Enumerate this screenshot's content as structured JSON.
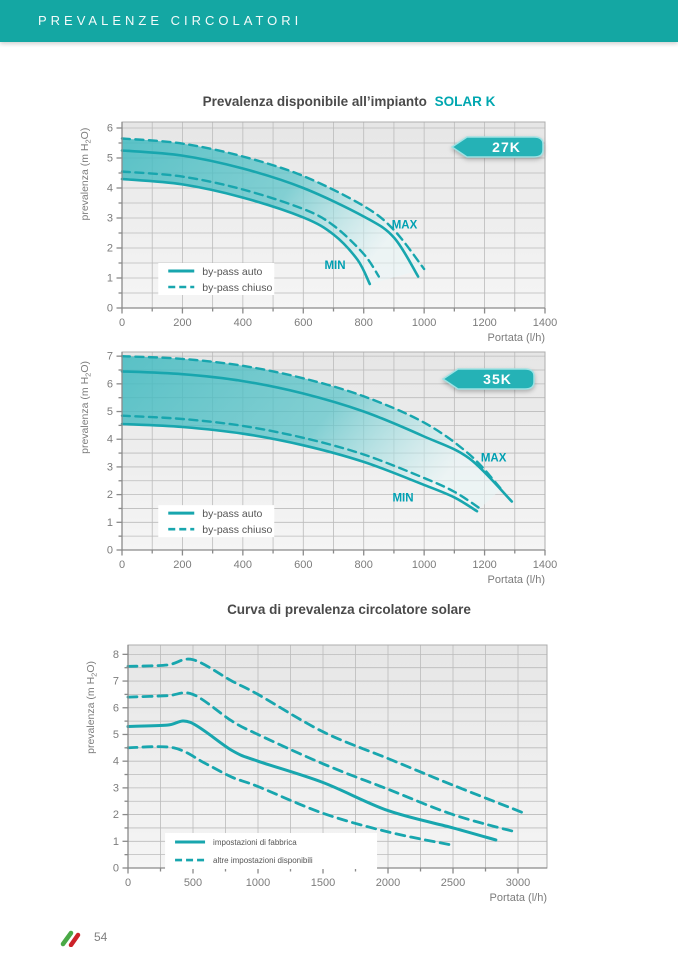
{
  "header": {
    "title": "PREVALENZE CIRCOLATORI"
  },
  "page": {
    "number": "54"
  },
  "icons": {
    "footer_logo": "italy-flag-strokes-icon"
  },
  "colors": {
    "header_bar": "#14a7a3",
    "curve": "#18a6ae",
    "accent_text": "#00a7b0",
    "annotation": "#00a0b2",
    "badge_fill": "#25b2b6",
    "band_start": "#40bac0",
    "band_end": "#e8f7f8",
    "grid": "#bbbbbb",
    "axis": "#8a8a8a",
    "tick_label": "#7c7c7c",
    "title_text": "#4a4a4a",
    "flag_green": "#4aa946",
    "flag_red": "#cc2229"
  },
  "section_solar": {
    "title": "Prevalenza disponibile all’impianto",
    "title_accent": "SOLAR K"
  },
  "section_curve": {
    "title": "Curva di prevalenza circolatore solare"
  },
  "chart_data": [
    {
      "type": "line",
      "name": "Prevalenza disponibile all'impianto SOLAR K 27K",
      "badge": "27K",
      "xlabel": "Portata (l/h)",
      "ylabel": "prevalenza (m H2O)",
      "ylabel_parts": {
        "pre": "prevalenza (m H",
        "sub": "2",
        "post": "O)"
      },
      "xlim": [
        0,
        1400
      ],
      "ylim": [
        0,
        6.2
      ],
      "xticks": [
        0,
        200,
        400,
        600,
        800,
        1000,
        1200,
        1400
      ],
      "yticks": [
        0,
        1,
        2,
        3,
        4,
        5,
        6
      ],
      "minor_x": 100,
      "minor_y": 0.5,
      "grid": true,
      "legend_pos": [
        120,
        1.5
      ],
      "legend": [
        {
          "label": "by-pass auto",
          "style": "solid"
        },
        {
          "label": "by-pass chiuso",
          "style": "dashed"
        }
      ],
      "annotations": [
        {
          "text": "MAX",
          "x": 935,
          "y": 2.65
        },
        {
          "text": "MIN",
          "x": 705,
          "y": 1.3
        }
      ],
      "band": [
        1,
        3
      ],
      "series": [
        {
          "name": "by-pass auto (MAX)",
          "style": "solid",
          "points": [
            [
              0,
              5.25
            ],
            [
              200,
              5.08
            ],
            [
              400,
              4.65
            ],
            [
              600,
              4.0
            ],
            [
              800,
              3.05
            ],
            [
              900,
              2.35
            ],
            [
              980,
              1.05
            ]
          ]
        },
        {
          "name": "by-pass chiuso (MAX)",
          "style": "dashed",
          "points": [
            [
              0,
              5.65
            ],
            [
              200,
              5.48
            ],
            [
              400,
              5.05
            ],
            [
              600,
              4.4
            ],
            [
              800,
              3.4
            ],
            [
              900,
              2.6
            ],
            [
              1000,
              1.3
            ]
          ]
        },
        {
          "name": "by-pass chiuso (MIN)",
          "style": "dashed",
          "points": [
            [
              0,
              4.55
            ],
            [
              200,
              4.38
            ],
            [
              400,
              3.95
            ],
            [
              600,
              3.3
            ],
            [
              700,
              2.75
            ],
            [
              800,
              1.8
            ],
            [
              850,
              1.05
            ]
          ]
        },
        {
          "name": "by-pass auto (MIN)",
          "style": "solid",
          "points": [
            [
              0,
              4.3
            ],
            [
              200,
              4.12
            ],
            [
              400,
              3.68
            ],
            [
              600,
              3.02
            ],
            [
              700,
              2.45
            ],
            [
              780,
              1.6
            ],
            [
              820,
              0.8
            ]
          ]
        }
      ]
    },
    {
      "type": "line",
      "name": "Prevalenza disponibile all'impianto SOLAR K 35K",
      "badge": "35K",
      "xlabel": "Portata (l/h)",
      "ylabel": "prevalenza (m H2O)",
      "ylabel_parts": {
        "pre": "prevalenza (m H",
        "sub": "2",
        "post": "O)"
      },
      "xlim": [
        0,
        1400
      ],
      "ylim": [
        0,
        7.15
      ],
      "xticks": [
        0,
        200,
        400,
        600,
        800,
        1000,
        1200,
        1400
      ],
      "yticks": [
        0,
        1,
        2,
        3,
        4,
        5,
        6,
        7
      ],
      "minor_x": 100,
      "minor_y": 0.5,
      "grid": true,
      "legend_pos": [
        120,
        1.62
      ],
      "legend": [
        {
          "label": "by-pass auto",
          "style": "solid"
        },
        {
          "label": "by-pass chiuso",
          "style": "dashed"
        }
      ],
      "annotations": [
        {
          "text": "MAX",
          "x": 1230,
          "y": 3.2
        },
        {
          "text": "MIN",
          "x": 930,
          "y": 1.75
        }
      ],
      "band": [
        1,
        3
      ],
      "series": [
        {
          "name": "by-pass auto (MAX)",
          "style": "solid",
          "points": [
            [
              0,
              6.45
            ],
            [
              200,
              6.35
            ],
            [
              400,
              6.1
            ],
            [
              600,
              5.65
            ],
            [
              800,
              5.0
            ],
            [
              1000,
              4.1
            ],
            [
              1150,
              3.3
            ],
            [
              1290,
              1.75
            ]
          ]
        },
        {
          "name": "by-pass chiuso (MAX)",
          "style": "dashed",
          "points": [
            [
              0,
              7.0
            ],
            [
              200,
              6.9
            ],
            [
              400,
              6.65
            ],
            [
              600,
              6.2
            ],
            [
              800,
              5.55
            ],
            [
              1000,
              4.6
            ],
            [
              1150,
              3.45
            ],
            [
              1255,
              2.2
            ]
          ]
        },
        {
          "name": "by-pass chiuso (MIN)",
          "style": "dashed",
          "points": [
            [
              0,
              4.85
            ],
            [
              200,
              4.73
            ],
            [
              400,
              4.48
            ],
            [
              600,
              4.05
            ],
            [
              800,
              3.45
            ],
            [
              1000,
              2.6
            ],
            [
              1100,
              2.1
            ],
            [
              1185,
              1.5
            ]
          ]
        },
        {
          "name": "by-pass auto (MIN)",
          "style": "solid",
          "points": [
            [
              0,
              4.55
            ],
            [
              200,
              4.44
            ],
            [
              400,
              4.2
            ],
            [
              600,
              3.78
            ],
            [
              800,
              3.18
            ],
            [
              1000,
              2.35
            ],
            [
              1100,
              1.9
            ],
            [
              1175,
              1.4
            ]
          ]
        }
      ]
    },
    {
      "type": "line",
      "name": "Curva di prevalenza circolatore solare",
      "badge": null,
      "xlabel": "Portata (l/h)",
      "ylabel": "prevalenza (m H2O)",
      "ylabel_parts": {
        "pre": "prevalenza (m H",
        "sub": "2",
        "post": "O)"
      },
      "xlim": [
        0,
        3223
      ],
      "ylim": [
        0,
        8.35
      ],
      "xticks": [
        0,
        500,
        1000,
        1500,
        2000,
        2500,
        3000
      ],
      "yticks": [
        0,
        1,
        2,
        3,
        4,
        5,
        6,
        7,
        8
      ],
      "minor_x": 250,
      "minor_y": 0.5,
      "grid": true,
      "legend_pos": [
        285,
        1.31
      ],
      "legend": [
        {
          "label": "impostazioni di fabbrica",
          "style": "solid"
        },
        {
          "label": "altre impostazioni disponibili",
          "style": "dashed"
        }
      ],
      "annotations": [],
      "band": null,
      "series": [
        {
          "name": "altre impostazioni (alta)",
          "style": "dashed",
          "points": [
            [
              0,
              7.55
            ],
            [
              300,
              7.6
            ],
            [
              500,
              7.8
            ],
            [
              800,
              7.0
            ],
            [
              1000,
              6.5
            ],
            [
              1500,
              5.1
            ],
            [
              2000,
              4.1
            ],
            [
              2500,
              3.1
            ],
            [
              3050,
              2.05
            ]
          ]
        },
        {
          "name": "altre impostazioni (media)",
          "style": "dashed",
          "points": [
            [
              0,
              6.4
            ],
            [
              300,
              6.45
            ],
            [
              500,
              6.5
            ],
            [
              800,
              5.5
            ],
            [
              1000,
              5.0
            ],
            [
              1500,
              3.9
            ],
            [
              2000,
              2.95
            ],
            [
              2500,
              2.0
            ],
            [
              2980,
              1.35
            ]
          ]
        },
        {
          "name": "impostazioni di fabbrica",
          "style": "solid",
          "points": [
            [
              0,
              5.3
            ],
            [
              300,
              5.35
            ],
            [
              480,
              5.45
            ],
            [
              800,
              4.4
            ],
            [
              1000,
              4.0
            ],
            [
              1500,
              3.2
            ],
            [
              2000,
              2.15
            ],
            [
              2500,
              1.5
            ],
            [
              2830,
              1.05
            ]
          ]
        },
        {
          "name": "altre impostazioni (bassa)",
          "style": "dashed",
          "points": [
            [
              0,
              4.5
            ],
            [
              350,
              4.5
            ],
            [
              600,
              3.9
            ],
            [
              800,
              3.4
            ],
            [
              1000,
              3.05
            ],
            [
              1500,
              2.05
            ],
            [
              2000,
              1.35
            ],
            [
              2500,
              0.85
            ]
          ]
        }
      ]
    }
  ]
}
